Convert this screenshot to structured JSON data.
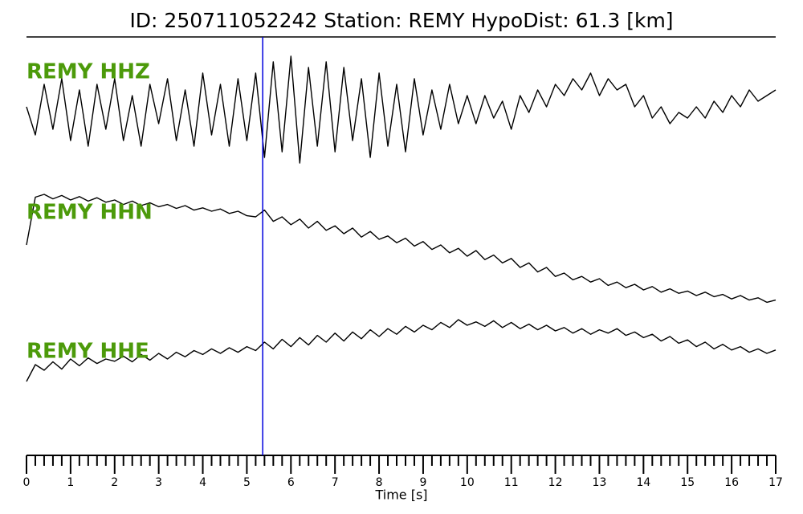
{
  "chart_data": {
    "type": "seismogram",
    "title": "ID: 250711052242   Station: REMY   HypoDist:    61.3 [km]",
    "xlabel": "Time [s]",
    "xlim": [
      0,
      17
    ],
    "xticks": [
      0,
      1,
      2,
      3,
      4,
      5,
      6,
      7,
      8,
      9,
      10,
      11,
      12,
      13,
      14,
      15,
      16,
      17
    ],
    "minor_xticks": [
      0.2,
      0.4,
      0.6,
      0.8,
      1.2,
      1.4,
      1.6,
      1.8,
      2.2,
      2.4,
      2.6,
      2.8,
      3.2,
      3.4,
      3.6,
      3.8,
      4.2,
      4.4,
      4.6,
      4.8,
      5.2,
      5.4,
      5.6,
      5.8,
      6.2,
      6.4,
      6.6,
      6.8,
      7.2,
      7.4,
      7.6,
      7.8,
      8.2,
      8.4,
      8.6,
      8.8,
      9.2,
      9.4,
      9.6,
      9.8,
      10.2,
      10.4,
      10.6,
      10.8,
      11.2,
      11.4,
      11.6,
      11.8,
      12.2,
      12.4,
      12.6,
      12.8,
      13.2,
      13.4,
      13.6,
      13.8,
      14.2,
      14.4,
      14.6,
      14.8,
      15.2,
      15.4,
      15.6,
      15.8,
      16.2,
      16.4,
      16.6,
      16.8
    ],
    "pick_x": 5.36,
    "pick_color": "#0000dd",
    "label_color": "#4c9a0a",
    "x": [
      0,
      0.2,
      0.4,
      0.6,
      0.8,
      1,
      1.2,
      1.4,
      1.6,
      1.8,
      2,
      2.2,
      2.4,
      2.6,
      2.8,
      3,
      3.2,
      3.4,
      3.6,
      3.8,
      4,
      4.2,
      4.4,
      4.6,
      4.8,
      5,
      5.2,
      5.4,
      5.6,
      5.8,
      6,
      6.2,
      6.4,
      6.6,
      6.8,
      7,
      7.2,
      7.4,
      7.6,
      7.8,
      8,
      8.2,
      8.4,
      8.6,
      8.8,
      9,
      9.2,
      9.4,
      9.6,
      9.8,
      10,
      10.2,
      10.4,
      10.6,
      10.8,
      11,
      11.2,
      11.4,
      11.6,
      11.8,
      12,
      12.2,
      12.4,
      12.6,
      12.8,
      13,
      13.2,
      13.4,
      13.6,
      13.8,
      14,
      14.2,
      14.4,
      14.6,
      14.8,
      15,
      15.2,
      15.4,
      15.6,
      15.8,
      16,
      16.2,
      16.4,
      16.6,
      16.8,
      17
    ],
    "series": [
      {
        "name": "REMY HHZ",
        "color": "#000000",
        "values": [
          0.1,
          -0.4,
          0.5,
          -0.3,
          0.6,
          -0.5,
          0.4,
          -0.6,
          0.5,
          -0.3,
          0.6,
          -0.5,
          0.3,
          -0.6,
          0.5,
          -0.2,
          0.6,
          -0.5,
          0.4,
          -0.6,
          0.7,
          -0.4,
          0.5,
          -0.6,
          0.6,
          -0.5,
          0.7,
          -0.8,
          0.9,
          -0.7,
          1.0,
          -0.9,
          0.8,
          -0.6,
          0.9,
          -0.7,
          0.8,
          -0.5,
          0.6,
          -0.8,
          0.7,
          -0.6,
          0.5,
          -0.7,
          0.6,
          -0.4,
          0.4,
          -0.3,
          0.5,
          -0.2,
          0.3,
          -0.2,
          0.3,
          -0.1,
          0.2,
          -0.3,
          0.3,
          0.0,
          0.4,
          0.1,
          0.5,
          0.3,
          0.6,
          0.4,
          0.7,
          0.3,
          0.6,
          0.4,
          0.5,
          0.1,
          0.3,
          -0.1,
          0.1,
          -0.2,
          0.0,
          -0.1,
          0.1,
          -0.1,
          0.2,
          0.0,
          0.3,
          0.1,
          0.4,
          0.2,
          0.3,
          0.4
        ]
      },
      {
        "name": "REMY HHN",
        "color": "#000000",
        "values": [
          0.0,
          0.85,
          0.9,
          0.82,
          0.88,
          0.8,
          0.86,
          0.78,
          0.84,
          0.76,
          0.8,
          0.72,
          0.78,
          0.7,
          0.75,
          0.68,
          0.72,
          0.65,
          0.7,
          0.62,
          0.66,
          0.6,
          0.64,
          0.56,
          0.6,
          0.52,
          0.5,
          0.62,
          0.42,
          0.5,
          0.36,
          0.46,
          0.3,
          0.42,
          0.26,
          0.34,
          0.2,
          0.3,
          0.14,
          0.24,
          0.1,
          0.16,
          0.04,
          0.12,
          -0.02,
          0.06,
          -0.08,
          0.0,
          -0.14,
          -0.06,
          -0.2,
          -0.1,
          -0.26,
          -0.18,
          -0.32,
          -0.24,
          -0.4,
          -0.32,
          -0.48,
          -0.4,
          -0.56,
          -0.5,
          -0.62,
          -0.56,
          -0.66,
          -0.6,
          -0.72,
          -0.66,
          -0.76,
          -0.7,
          -0.8,
          -0.74,
          -0.84,
          -0.78,
          -0.86,
          -0.82,
          -0.9,
          -0.84,
          -0.92,
          -0.88,
          -0.96,
          -0.9,
          -0.98,
          -0.94,
          -1.02,
          -0.98
        ]
      },
      {
        "name": "REMY HHE",
        "color": "#000000",
        "values": [
          -0.5,
          -0.2,
          -0.3,
          -0.15,
          -0.28,
          -0.1,
          -0.22,
          -0.08,
          -0.18,
          -0.1,
          -0.14,
          -0.05,
          -0.15,
          -0.02,
          -0.12,
          0.0,
          -0.1,
          0.02,
          -0.06,
          0.05,
          -0.02,
          0.08,
          0.0,
          0.1,
          0.02,
          0.12,
          0.05,
          0.2,
          0.08,
          0.25,
          0.12,
          0.28,
          0.15,
          0.32,
          0.2,
          0.36,
          0.22,
          0.38,
          0.26,
          0.42,
          0.3,
          0.44,
          0.34,
          0.48,
          0.38,
          0.5,
          0.42,
          0.55,
          0.46,
          0.6,
          0.5,
          0.56,
          0.48,
          0.58,
          0.46,
          0.55,
          0.44,
          0.52,
          0.42,
          0.5,
          0.4,
          0.46,
          0.36,
          0.44,
          0.34,
          0.42,
          0.36,
          0.44,
          0.32,
          0.38,
          0.28,
          0.34,
          0.22,
          0.3,
          0.18,
          0.24,
          0.12,
          0.2,
          0.08,
          0.16,
          0.06,
          0.12,
          0.02,
          0.08,
          0.0,
          0.06
        ]
      }
    ]
  }
}
